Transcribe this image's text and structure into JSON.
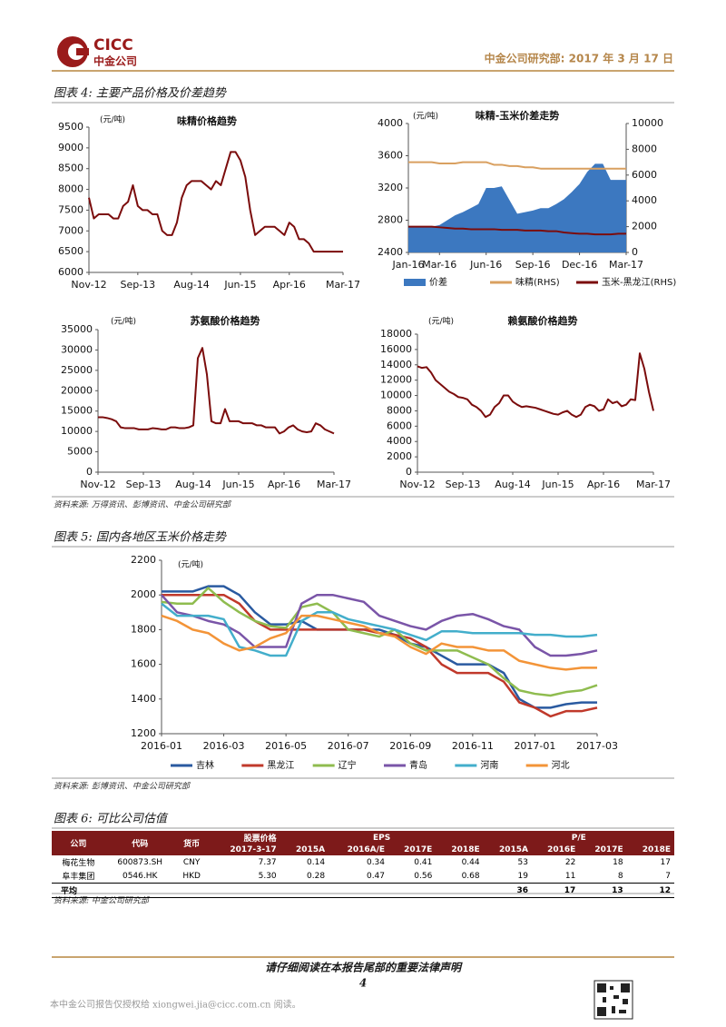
{
  "header": {
    "logo_en": "CICC",
    "logo_cn": "中金公司",
    "date": "中金公司研究部: 2017 年 3 月 17 日"
  },
  "figure4": {
    "title": "图表 4: 主要产品价格及价差趋势",
    "source": "资料来源: 万得资讯、彭博资讯、中金公司研究部"
  },
  "figure5": {
    "title": "图表 5: 国内各地区玉米价格走势",
    "source": "资料来源: 彭博资讯、中金公司研究部"
  },
  "chart_data": [
    {
      "type": "line",
      "title": "味精价格趋势",
      "y_label": "(元/吨)",
      "categories": [
        "Nov-12",
        null,
        null,
        null,
        null,
        null,
        null,
        null,
        null,
        null,
        "Sep-13",
        null,
        null,
        null,
        null,
        null,
        null,
        null,
        null,
        null,
        null,
        "Aug-14",
        null,
        null,
        null,
        null,
        null,
        null,
        null,
        null,
        null,
        "Jun-15",
        null,
        null,
        null,
        null,
        null,
        null,
        null,
        null,
        null,
        "Apr-16",
        null,
        null,
        null,
        null,
        null,
        null,
        null,
        null,
        null,
        null,
        "Mar-17"
      ],
      "series": [
        {
          "name": "味精",
          "color": "#7b0c0c",
          "values": [
            7800,
            7300,
            7400,
            7400,
            7400,
            7300,
            7300,
            7600,
            7700,
            8100,
            7600,
            7500,
            7500,
            7400,
            7400,
            7000,
            6900,
            6900,
            7200,
            7800,
            8100,
            8200,
            8200,
            8200,
            8100,
            8000,
            8200,
            8100,
            8500,
            8900,
            8900,
            8700,
            8300,
            7500,
            6900,
            7000,
            7100,
            7100,
            7100,
            7000,
            6900,
            7200,
            7100,
            6800,
            6800,
            6700,
            6500,
            6500,
            6500,
            6500,
            6500,
            6500,
            6500
          ]
        }
      ],
      "ylim": [
        6000,
        9500
      ],
      "yticks": [
        6000,
        6500,
        7000,
        7500,
        8000,
        8500,
        9000,
        9500
      ],
      "grid": false
    },
    {
      "type": "line",
      "title": "味精-玉米价差走势",
      "y_label": "(元/吨)",
      "categories": [
        "Jan-16",
        null,
        null,
        null,
        "Mar-16",
        null,
        null,
        null,
        null,
        null,
        "Jun-16",
        null,
        null,
        null,
        null,
        null,
        "Sep-16",
        null,
        null,
        null,
        null,
        null,
        "Dec-16",
        null,
        null,
        null,
        null,
        null,
        "Mar-17"
      ],
      "series": [
        {
          "name": "价差",
          "color": "#3c78c0",
          "type": "area",
          "values": [
            2720,
            2720,
            2720,
            2720,
            2740,
            2800,
            2860,
            2900,
            2950,
            3000,
            3200,
            3200,
            3220,
            3050,
            2880,
            2900,
            2920,
            2950,
            2950,
            3000,
            3060,
            3150,
            3250,
            3400,
            3500,
            3500,
            3300,
            3300,
            3300
          ]
        },
        {
          "name": "味精(RHS)",
          "color": "#d9a060",
          "axis": "y2",
          "values": [
            7000,
            7000,
            7000,
            7000,
            6900,
            6900,
            6900,
            7000,
            7000,
            7000,
            7000,
            6800,
            6800,
            6700,
            6700,
            6600,
            6600,
            6500,
            6500,
            6500,
            6500,
            6500,
            6500,
            6500,
            6500,
            6500,
            6500,
            6500,
            6500
          ]
        },
        {
          "name": "玉米-黑龙江(RHS)",
          "color": "#7b0c0c",
          "axis": "y2",
          "values": [
            2000,
            2000,
            2000,
            2000,
            1950,
            1900,
            1850,
            1850,
            1800,
            1800,
            1800,
            1800,
            1750,
            1750,
            1750,
            1700,
            1700,
            1700,
            1650,
            1650,
            1550,
            1500,
            1450,
            1450,
            1400,
            1400,
            1400,
            1450,
            1450
          ]
        }
      ],
      "ylim": [
        2400,
        4000
      ],
      "yticks": [
        2400,
        2800,
        3200,
        3600,
        4000
      ],
      "y2lim": [
        0,
        10000
      ],
      "y2ticks": [
        0,
        2000,
        4000,
        6000,
        8000,
        10000
      ],
      "legend": "bottom",
      "grid": false
    },
    {
      "type": "line",
      "title": "苏氨酸价格趋势",
      "y_label": "(元/吨)",
      "categories": [
        "Nov-12",
        null,
        null,
        null,
        null,
        null,
        null,
        null,
        null,
        null,
        "Sep-13",
        null,
        null,
        null,
        null,
        null,
        null,
        null,
        null,
        null,
        null,
        "Aug-14",
        null,
        null,
        null,
        null,
        null,
        null,
        null,
        null,
        null,
        "Jun-15",
        null,
        null,
        null,
        null,
        null,
        null,
        null,
        null,
        null,
        "Apr-16",
        null,
        null,
        null,
        null,
        null,
        null,
        null,
        null,
        null,
        null,
        "Mar-17"
      ],
      "series": [
        {
          "name": "苏氨酸",
          "color": "#7b0c0c",
          "values": [
            13500,
            13500,
            13300,
            13000,
            12500,
            11000,
            10800,
            10800,
            10800,
            10500,
            10500,
            10500,
            10800,
            10700,
            10500,
            10500,
            11000,
            11000,
            10800,
            10800,
            11000,
            11500,
            28000,
            30500,
            24000,
            12500,
            12000,
            12000,
            15500,
            12500,
            12500,
            12500,
            12000,
            12000,
            12000,
            11500,
            11500,
            11000,
            11000,
            11000,
            9500,
            10000,
            11000,
            11500,
            10500,
            10000,
            9800,
            10000,
            12000,
            11500,
            10500,
            10000,
            9500
          ]
        }
      ],
      "ylim": [
        0,
        35000
      ],
      "yticks": [
        0,
        5000,
        10000,
        15000,
        20000,
        25000,
        30000,
        35000
      ],
      "grid": false
    },
    {
      "type": "line",
      "title": "赖氨酸价格趋势",
      "y_label": "(元/吨)",
      "categories": [
        "Nov-12",
        null,
        null,
        null,
        null,
        null,
        null,
        null,
        null,
        null,
        "Sep-13",
        null,
        null,
        null,
        null,
        null,
        null,
        null,
        null,
        null,
        null,
        "Aug-14",
        null,
        null,
        null,
        null,
        null,
        null,
        null,
        null,
        null,
        "Jun-15",
        null,
        null,
        null,
        null,
        null,
        null,
        null,
        null,
        null,
        "Apr-16",
        null,
        null,
        null,
        null,
        null,
        null,
        null,
        null,
        null,
        null,
        "Mar-17"
      ],
      "series": [
        {
          "name": "赖氨酸",
          "color": "#7b0c0c",
          "values": [
            13800,
            13600,
            13700,
            13000,
            12000,
            11500,
            11000,
            10500,
            10200,
            9800,
            9700,
            9500,
            8800,
            8500,
            8000,
            7200,
            7500,
            8500,
            9000,
            10000,
            10000,
            9200,
            8800,
            8500,
            8600,
            8500,
            8400,
            8200,
            8000,
            7800,
            7600,
            7500,
            7800,
            8000,
            7500,
            7200,
            7500,
            8500,
            8800,
            8600,
            8000,
            8200,
            9500,
            9000,
            9200,
            8600,
            8800,
            9500,
            9400,
            15500,
            13500,
            10500,
            8000
          ]
        }
      ],
      "ylim": [
        0,
        18000
      ],
      "yticks": [
        0,
        2000,
        4000,
        6000,
        8000,
        10000,
        12000,
        14000,
        16000,
        18000
      ],
      "grid": false
    },
    {
      "type": "line",
      "y_label": "(元/吨)",
      "categories": [
        "2016-01",
        null,
        null,
        null,
        "2016-03",
        null,
        null,
        null,
        "2016-05",
        null,
        null,
        null,
        "2016-07",
        null,
        null,
        null,
        "2016-09",
        null,
        null,
        null,
        "2016-11",
        null,
        null,
        null,
        "2017-01",
        null,
        null,
        null,
        "2017-03"
      ],
      "series": [
        {
          "name": "吉林",
          "color": "#2a5aa0",
          "values": [
            2020,
            2020,
            2020,
            2050,
            2050,
            2000,
            1900,
            1830,
            1830,
            1850,
            1800,
            1800,
            1800,
            1800,
            1800,
            1770,
            1720,
            1700,
            1650,
            1600,
            1600,
            1600,
            1550,
            1400,
            1350,
            1350,
            1370,
            1380,
            1380
          ]
        },
        {
          "name": "黑龙江",
          "color": "#c0392b",
          "values": [
            2000,
            2000,
            2000,
            2000,
            2000,
            1950,
            1850,
            1800,
            1800,
            1800,
            1800,
            1800,
            1800,
            1800,
            1780,
            1770,
            1750,
            1700,
            1600,
            1550,
            1550,
            1550,
            1500,
            1380,
            1350,
            1300,
            1330,
            1330,
            1350
          ]
        },
        {
          "name": "辽宁",
          "color": "#8fbc4f",
          "values": [
            1960,
            1950,
            1950,
            2040,
            1960,
            1900,
            1850,
            1820,
            1810,
            1930,
            1950,
            1900,
            1800,
            1780,
            1760,
            1800,
            1720,
            1680,
            1680,
            1680,
            1640,
            1600,
            1520,
            1450,
            1430,
            1420,
            1440,
            1450,
            1480
          ]
        },
        {
          "name": "青岛",
          "color": "#7a55a8",
          "values": [
            2000,
            1900,
            1880,
            1850,
            1830,
            1780,
            1700,
            1700,
            1700,
            1950,
            2000,
            2000,
            1980,
            1960,
            1880,
            1850,
            1820,
            1800,
            1850,
            1880,
            1890,
            1860,
            1820,
            1800,
            1700,
            1650,
            1650,
            1660,
            1680
          ]
        },
        {
          "name": "河南",
          "color": "#43aecb",
          "values": [
            1950,
            1880,
            1880,
            1880,
            1860,
            1700,
            1680,
            1650,
            1650,
            1850,
            1900,
            1900,
            1860,
            1840,
            1820,
            1800,
            1770,
            1740,
            1790,
            1790,
            1780,
            1780,
            1780,
            1780,
            1770,
            1770,
            1760,
            1760,
            1770
          ]
        },
        {
          "name": "河北",
          "color": "#f39438",
          "values": [
            1880,
            1850,
            1800,
            1780,
            1720,
            1680,
            1700,
            1750,
            1780,
            1880,
            1880,
            1860,
            1840,
            1820,
            1780,
            1760,
            1700,
            1660,
            1720,
            1700,
            1700,
            1680,
            1680,
            1620,
            1600,
            1580,
            1570,
            1580,
            1580
          ]
        }
      ],
      "ylim": [
        1200,
        2200
      ],
      "yticks": [
        1200,
        1400,
        1600,
        1800,
        2000,
        2200
      ],
      "legend": "bottom",
      "grid": false
    }
  ],
  "table": {
    "title": "图表 6: 可比公司估值",
    "header_top": [
      "公司",
      "代码",
      "货币",
      "股票价格",
      "EPS",
      "P/E"
    ],
    "header_sub": [
      "2017-3-17",
      "2015A",
      "2016A/E",
      "2017E",
      "2018E",
      "2015A",
      "2016E",
      "2017E",
      "2018E"
    ],
    "rows": [
      [
        "梅花生物",
        "600873.SH",
        "CNY",
        "7.37",
        "0.14",
        "0.34",
        "0.41",
        "0.44",
        "53",
        "22",
        "18",
        "17"
      ],
      [
        "阜丰集团",
        "0546.HK",
        "HKD",
        "5.30",
        "0.28",
        "0.47",
        "0.56",
        "0.68",
        "19",
        "11",
        "8",
        "7"
      ]
    ],
    "average": {
      "label": "平均",
      "pe": [
        "36",
        "17",
        "13",
        "12"
      ]
    },
    "source": "资料来源: 中金公司研究部"
  },
  "footer": {
    "notice": "请仔细阅读在本报告尾部的重要法律声明",
    "page": "4",
    "watermark": "本中金公司报告仅授权给 xiongwei.jia@cicc.com.cn 阅读。"
  }
}
